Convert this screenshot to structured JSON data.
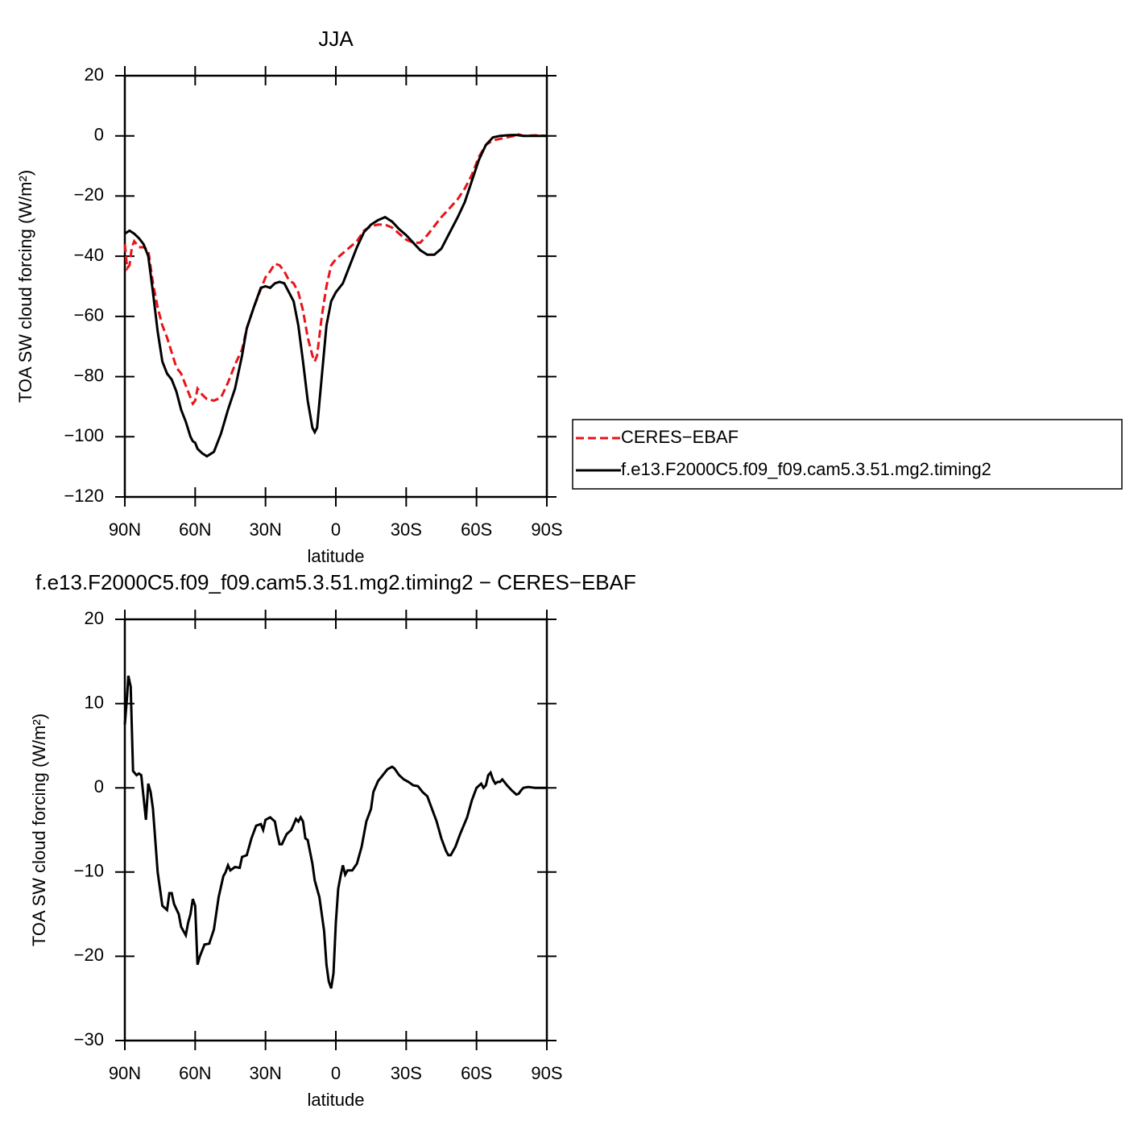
{
  "chart_data": [
    {
      "type": "line",
      "title": "JJA",
      "xlabel": "latitude",
      "ylabel": "TOA SW cloud forcing (W/m²)",
      "x": [
        90,
        89,
        88,
        87,
        86,
        84,
        82,
        80,
        78,
        76,
        74,
        72,
        70,
        68,
        66,
        64,
        62,
        61,
        60,
        59,
        57,
        55,
        52,
        49,
        46,
        43,
        40,
        38,
        35,
        32,
        30,
        28,
        26,
        24,
        22,
        20,
        18,
        16,
        14,
        12,
        10,
        9,
        8,
        6,
        4,
        2,
        0,
        -3,
        -6,
        -9,
        -12,
        -15,
        -18,
        -21,
        -24,
        -27,
        -30,
        -33,
        -36,
        -39,
        -42,
        -45,
        -48,
        -52,
        -55,
        -58,
        -61,
        -64,
        -67,
        -70,
        -73,
        -76,
        -77,
        -80,
        -85,
        -90
      ],
      "series": [
        {
          "name": "CERES−EBAF",
          "color": "#e8141a",
          "style": "dashed",
          "values": [
            -36,
            -44,
            -43,
            -37,
            -35,
            -37,
            -37,
            -38,
            -49,
            -57,
            -63,
            -67,
            -72,
            -77,
            -79,
            -83,
            -87,
            -89,
            -88,
            -84,
            -86,
            -87.5,
            -88,
            -87,
            -82,
            -76,
            -71,
            -64,
            -57,
            -51,
            -47,
            -45,
            -42.5,
            -43,
            -45,
            -48,
            -49,
            -52,
            -58,
            -67,
            -73,
            -75,
            -73,
            -60,
            -50,
            -43,
            -41,
            -39,
            -37,
            -35,
            -31.5,
            -30,
            -29.5,
            -29.5,
            -30.5,
            -32.5,
            -34.5,
            -35.5,
            -35.5,
            -33,
            -30,
            -27,
            -24.5,
            -21,
            -17.5,
            -13,
            -7,
            -3,
            -1.5,
            -1,
            -0.5,
            0,
            0.7,
            0,
            0.2,
            0
          ]
        },
        {
          "name": "f.e13.F2000C5.f09_f09.cam5.3.51.mg2.timing2",
          "color": "#000000",
          "style": "solid",
          "values": [
            -32.5,
            -32,
            -31.5,
            -32,
            -32.5,
            -34,
            -36,
            -40,
            -52,
            -65,
            -75,
            -79,
            -81,
            -85,
            -91,
            -95,
            -100,
            -101.5,
            -102,
            -104,
            -105.5,
            -106.5,
            -105,
            -99,
            -91,
            -84,
            -73,
            -64,
            -57,
            -50.5,
            -50,
            -50.5,
            -49,
            -48.5,
            -49,
            -52,
            -55,
            -63,
            -75,
            -88,
            -97,
            -98.5,
            -97,
            -80,
            -63,
            -55,
            -52,
            -49,
            -43,
            -37,
            -32,
            -29.5,
            -28,
            -27,
            -28.5,
            -31,
            -33,
            -35.5,
            -38,
            -39.5,
            -39.5,
            -37.5,
            -33,
            -27,
            -22,
            -15,
            -8,
            -3,
            -0.5,
            0,
            0.2,
            0.3,
            0.3,
            0,
            0,
            0
          ]
        }
      ],
      "xlim": [
        90,
        -90
      ],
      "xticks": [
        {
          "value": 90,
          "label": "90N"
        },
        {
          "value": 60,
          "label": "60N"
        },
        {
          "value": 30,
          "label": "30N"
        },
        0,
        {
          "value": -30,
          "label": "30S"
        },
        {
          "value": -60,
          "label": "60S"
        },
        {
          "value": -90,
          "label": "90S"
        }
      ],
      "ylim": [
        -120,
        20
      ],
      "yticks": [
        {
          "value": -120,
          "label": "−120"
        },
        {
          "value": -100,
          "label": "−100"
        },
        {
          "value": -80,
          "label": "−80"
        },
        {
          "value": -60,
          "label": "−60"
        },
        {
          "value": -40,
          "label": "−40"
        },
        {
          "value": -20,
          "label": "−20"
        },
        0,
        20
      ],
      "legend": "right"
    },
    {
      "type": "line",
      "title": "f.e13.F2000C5.f09_f09.cam5.3.51.mg2.timing2 − CERES−EBAF",
      "xlabel": "latitude",
      "ylabel": "TOA SW cloud forcing (W/m²)",
      "x": [
        90,
        89,
        88.5,
        87.5,
        86.5,
        85,
        84,
        83,
        81,
        80,
        79,
        78,
        76,
        74,
        72,
        71,
        70,
        69,
        67,
        66,
        64,
        63,
        62,
        61,
        60,
        59,
        58,
        56,
        54,
        52,
        50,
        48,
        47,
        46,
        45,
        43,
        41,
        40,
        38,
        37,
        36,
        34,
        32,
        31,
        30,
        28,
        26,
        25,
        24,
        23,
        21,
        19,
        17,
        16,
        15,
        14,
        13,
        12,
        10,
        9,
        7,
        5,
        4,
        3,
        2,
        1,
        0,
        -1,
        -2,
        -3,
        -4,
        -5,
        -7,
        -9,
        -11,
        -13,
        -15,
        -16,
        -18,
        -20,
        -22,
        -24,
        -25,
        -27,
        -29,
        -31,
        -33,
        -35,
        -37,
        -39,
        -41,
        -43,
        -45,
        -47,
        -48,
        -49,
        -51,
        -53,
        -56,
        -58,
        -60,
        -62,
        -63,
        -64,
        -65,
        -66,
        -67,
        -68,
        -69,
        -70,
        -71,
        -73,
        -75,
        -77,
        -78,
        -79,
        -80,
        -82,
        -85,
        -90
      ],
      "series": [
        {
          "color": "#000000",
          "style": "solid",
          "values": [
            7.5,
            11,
            13.3,
            12,
            2,
            1.5,
            1.7,
            1.5,
            -3.8,
            0.5,
            -0.5,
            -2.5,
            -10,
            -14,
            -14.5,
            -12.5,
            -12.5,
            -13.8,
            -15,
            -16.5,
            -17.5,
            -16,
            -15,
            -13.2,
            -14,
            -21,
            -20,
            -18.6,
            -18.5,
            -16.8,
            -13,
            -10.5,
            -10,
            -9.2,
            -9.8,
            -9.4,
            -9.5,
            -8.2,
            -8,
            -7,
            -6,
            -4.5,
            -4.3,
            -5,
            -3.8,
            -3.5,
            -4,
            -5.5,
            -6.7,
            -6.7,
            -5.5,
            -5,
            -3.7,
            -4,
            -3.5,
            -4,
            -6,
            -6.2,
            -9,
            -11,
            -13,
            -17,
            -21,
            -23,
            -23.8,
            -22,
            -16,
            -12,
            -10.5,
            -9.2,
            -10.3,
            -9.8,
            -9.8,
            -9,
            -7,
            -4,
            -2.5,
            -0.5,
            0.8,
            1.5,
            2.2,
            2.5,
            2.3,
            1.5,
            1,
            0.7,
            0.3,
            0.2,
            -0.5,
            -1,
            -2.5,
            -4,
            -6,
            -7.5,
            -8,
            -8,
            -7,
            -5.5,
            -3.5,
            -1.5,
            0,
            0.5,
            0,
            0.3,
            1.5,
            1.8,
            1,
            0.5,
            0.7,
            0.7,
            1,
            0.3,
            -0.3,
            -0.8,
            -0.7,
            -0.3,
            0,
            0.1,
            0,
            0
          ]
        }
      ],
      "xlim": [
        90,
        -90
      ],
      "xticks": [
        {
          "value": 90,
          "label": "90N"
        },
        {
          "value": 60,
          "label": "60N"
        },
        {
          "value": 30,
          "label": "30N"
        },
        0,
        {
          "value": -30,
          "label": "30S"
        },
        {
          "value": -60,
          "label": "60S"
        },
        {
          "value": -90,
          "label": "90S"
        }
      ],
      "ylim": [
        -30,
        20
      ],
      "yticks": [
        {
          "value": -30,
          "label": "−30"
        },
        {
          "value": -20,
          "label": "−20"
        },
        {
          "value": -10,
          "label": "−10"
        },
        0,
        10,
        20
      ]
    }
  ]
}
